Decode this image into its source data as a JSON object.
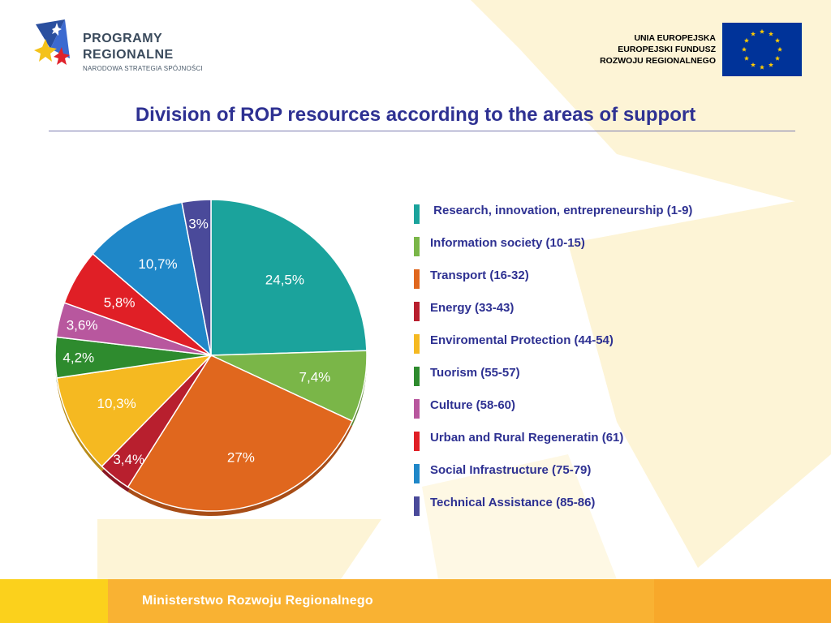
{
  "header": {
    "logo": {
      "line1": "PROGRAMY",
      "line2": "REGIONALNE",
      "line3": "NARODOWA STRATEGIA SPÓJNOŚCI",
      "icon": "stars-logo-icon"
    },
    "eu": {
      "line1": "UNIA EUROPEJSKA",
      "line2": "EUROPEJSKI FUNDUSZ",
      "line3": "ROZWOJU REGIONALNEGO",
      "flag_icon": "eu-flag-icon",
      "flag_color": "#003399",
      "star_color": "#ffcc00"
    }
  },
  "slide": {
    "title": "Division of ROP resources according to the areas of support"
  },
  "chart_data": {
    "type": "pie",
    "title": "",
    "slices": [
      {
        "label": " Research, innovation, entrepreneurship (1-9)",
        "value": 24.5,
        "display": "24,5%",
        "color": "#1ba39c"
      },
      {
        "label": "Information society (10-15)",
        "value": 7.4,
        "display": "7,4%",
        "color": "#7ab648"
      },
      {
        "label": "Transport (16-32)",
        "value": 27,
        "display": "27%",
        "color": "#e0671e"
      },
      {
        "label": "Energy (33-43)",
        "value": 3.4,
        "display": "3,4%",
        "color": "#b81f2e"
      },
      {
        "label": "Enviromental Protection (44-54)",
        "value": 10.3,
        "display": "10,3%",
        "color": "#f5b921"
      },
      {
        "label": "Tuorism (55-57)",
        "value": 4.2,
        "display": "4,2%",
        "color": "#2e8b2e"
      },
      {
        "label": "Culture (58-60)",
        "value": 3.6,
        "display": "3,6%",
        "color": "#b8579e"
      },
      {
        "label": "Urban and Rural Regeneratin (61)",
        "value": 5.8,
        "display": "5,8%",
        "color": "#e01f26"
      },
      {
        "label": "Social Infrastructure (75-79)",
        "value": 10.7,
        "display": "10,7%",
        "color": "#1f87c8"
      },
      {
        "label": "Technical Assistance (85-86)",
        "value": 3.0,
        "display": "3%",
        "color": "#4a4a9a"
      }
    ],
    "start_angle": "12 o'clock",
    "direction": "clockwise",
    "legend": "right"
  },
  "footer": {
    "text": "Ministerstwo Rozwoju Regionalnego"
  }
}
